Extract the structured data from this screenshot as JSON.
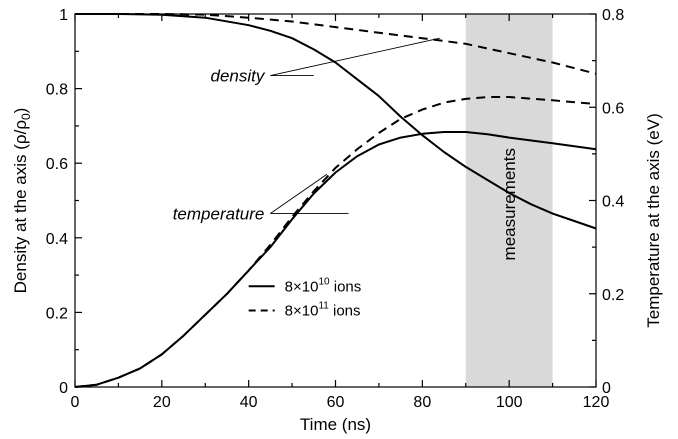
{
  "chart_data": {
    "type": "line",
    "xlabel": "Time (ns)",
    "ylabel_left": "Density at the axis (ρ/ρ",
    "ylabel_left_sub": "0",
    "ylabel_left_end": ")",
    "ylabel_right": "Temperature at the axis (eV)",
    "xlim": [
      0,
      120
    ],
    "ylim_left": [
      0,
      1
    ],
    "ylim_right": [
      0,
      0.8
    ],
    "x_ticks": [
      0,
      20,
      40,
      60,
      80,
      100,
      120
    ],
    "x_tick_labels": [
      "0",
      "20",
      "40",
      "60",
      "80",
      "100",
      "120"
    ],
    "y_left_ticks": [
      0,
      0.2,
      0.4,
      0.6,
      0.8,
      1
    ],
    "y_left_tick_labels": [
      "0",
      "0.2",
      "0.4",
      "0.6",
      "0.8",
      "1"
    ],
    "y_right_ticks": [
      0,
      0.2,
      0.4,
      0.6,
      0.8
    ],
    "y_right_tick_labels": [
      "0",
      "0.2",
      "0.4",
      "0.6",
      "0.8"
    ],
    "grid": false,
    "shaded_region": {
      "x": [
        90,
        110
      ],
      "label": "measurements",
      "color": "#d9d9d9"
    },
    "series": [
      {
        "name": "8×10^10 ions",
        "style": "solid",
        "quantity": "density",
        "axis": "left",
        "x": [
          0,
          10,
          20,
          30,
          40,
          45,
          50,
          55,
          60,
          65,
          70,
          75,
          80,
          85,
          90,
          95,
          100,
          105,
          110,
          115,
          120
        ],
        "y": [
          1,
          1,
          0.998,
          0.99,
          0.97,
          0.955,
          0.935,
          0.905,
          0.87,
          0.825,
          0.78,
          0.725,
          0.675,
          0.63,
          0.59,
          0.555,
          0.52,
          0.49,
          0.465,
          0.445,
          0.425
        ]
      },
      {
        "name": "8×10^11 ions",
        "style": "dashed",
        "quantity": "density",
        "axis": "left",
        "x": [
          0,
          10,
          20,
          30,
          40,
          50,
          60,
          70,
          80,
          90,
          100,
          110,
          120
        ],
        "y": [
          1,
          1,
          1,
          0.998,
          0.99,
          0.98,
          0.965,
          0.95,
          0.935,
          0.92,
          0.895,
          0.87,
          0.84
        ]
      },
      {
        "name": "8×10^10 ions",
        "style": "solid",
        "quantity": "temperature",
        "axis": "right",
        "x": [
          0,
          5,
          10,
          15,
          20,
          25,
          30,
          35,
          40,
          45,
          50,
          55,
          60,
          65,
          70,
          75,
          80,
          85,
          90,
          95,
          100,
          110,
          120
        ],
        "y": [
          0,
          0.005,
          0.02,
          0.04,
          0.07,
          0.11,
          0.155,
          0.2,
          0.25,
          0.3,
          0.36,
          0.415,
          0.46,
          0.495,
          0.52,
          0.535,
          0.543,
          0.547,
          0.547,
          0.542,
          0.535,
          0.523,
          0.51
        ]
      },
      {
        "name": "8×10^11 ions",
        "style": "dashed",
        "quantity": "temperature",
        "axis": "right",
        "x": [
          0,
          5,
          10,
          15,
          20,
          25,
          30,
          35,
          40,
          45,
          50,
          55,
          60,
          65,
          70,
          75,
          80,
          85,
          90,
          95,
          100,
          110,
          120
        ],
        "y": [
          0,
          0.005,
          0.02,
          0.04,
          0.07,
          0.11,
          0.155,
          0.2,
          0.25,
          0.305,
          0.365,
          0.42,
          0.47,
          0.51,
          0.545,
          0.575,
          0.595,
          0.61,
          0.618,
          0.622,
          0.622,
          0.615,
          0.607
        ]
      }
    ],
    "annotations": [
      {
        "text": "density",
        "x": 45,
        "y": 0.835,
        "targets": [
          [
            55,
            0.835
          ],
          [
            84,
            0.935
          ]
        ]
      },
      {
        "text": "temperature",
        "x": 45,
        "y": 0.465,
        "targets": [
          [
            63,
            0.465
          ],
          [
            58,
            0.57
          ]
        ]
      }
    ],
    "legend": {
      "entries": [
        {
          "label": "8×10",
          "exp": "10",
          "suffix": " ions",
          "style": "solid"
        },
        {
          "label": "8×10",
          "exp": "11",
          "suffix": " ions",
          "style": "dashed"
        }
      ]
    }
  }
}
